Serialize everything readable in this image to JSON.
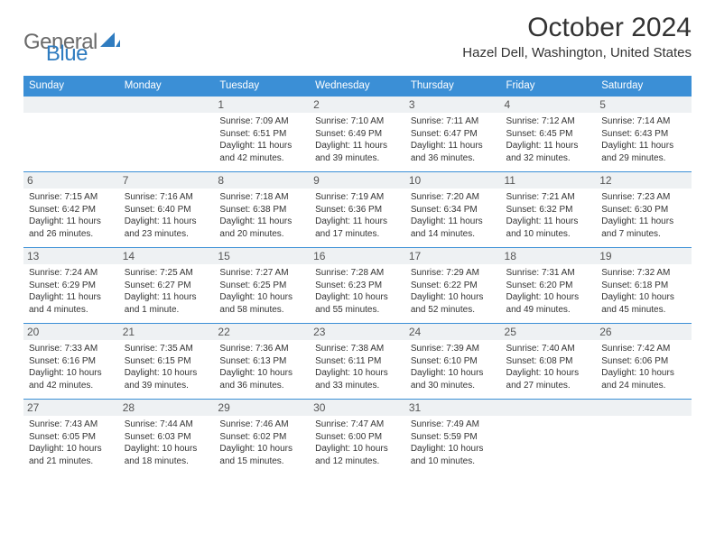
{
  "logo": {
    "word1": "General",
    "word2": "Blue",
    "shape_color": "#2f7cc0",
    "text_gray": "#6a6a6a"
  },
  "title": "October 2024",
  "location": "Hazel Dell, Washington, United States",
  "colors": {
    "header_bg": "#3b8fd6",
    "header_text": "#ffffff",
    "daynum_bg": "#eef1f3",
    "rule": "#3b8fd6",
    "body_text": "#333333"
  },
  "day_headers": [
    "Sunday",
    "Monday",
    "Tuesday",
    "Wednesday",
    "Thursday",
    "Friday",
    "Saturday"
  ],
  "weeks": [
    [
      {
        "n": "",
        "lines": []
      },
      {
        "n": "",
        "lines": []
      },
      {
        "n": "1",
        "lines": [
          "Sunrise: 7:09 AM",
          "Sunset: 6:51 PM",
          "Daylight: 11 hours and 42 minutes."
        ]
      },
      {
        "n": "2",
        "lines": [
          "Sunrise: 7:10 AM",
          "Sunset: 6:49 PM",
          "Daylight: 11 hours and 39 minutes."
        ]
      },
      {
        "n": "3",
        "lines": [
          "Sunrise: 7:11 AM",
          "Sunset: 6:47 PM",
          "Daylight: 11 hours and 36 minutes."
        ]
      },
      {
        "n": "4",
        "lines": [
          "Sunrise: 7:12 AM",
          "Sunset: 6:45 PM",
          "Daylight: 11 hours and 32 minutes."
        ]
      },
      {
        "n": "5",
        "lines": [
          "Sunrise: 7:14 AM",
          "Sunset: 6:43 PM",
          "Daylight: 11 hours and 29 minutes."
        ]
      }
    ],
    [
      {
        "n": "6",
        "lines": [
          "Sunrise: 7:15 AM",
          "Sunset: 6:42 PM",
          "Daylight: 11 hours and 26 minutes."
        ]
      },
      {
        "n": "7",
        "lines": [
          "Sunrise: 7:16 AM",
          "Sunset: 6:40 PM",
          "Daylight: 11 hours and 23 minutes."
        ]
      },
      {
        "n": "8",
        "lines": [
          "Sunrise: 7:18 AM",
          "Sunset: 6:38 PM",
          "Daylight: 11 hours and 20 minutes."
        ]
      },
      {
        "n": "9",
        "lines": [
          "Sunrise: 7:19 AM",
          "Sunset: 6:36 PM",
          "Daylight: 11 hours and 17 minutes."
        ]
      },
      {
        "n": "10",
        "lines": [
          "Sunrise: 7:20 AM",
          "Sunset: 6:34 PM",
          "Daylight: 11 hours and 14 minutes."
        ]
      },
      {
        "n": "11",
        "lines": [
          "Sunrise: 7:21 AM",
          "Sunset: 6:32 PM",
          "Daylight: 11 hours and 10 minutes."
        ]
      },
      {
        "n": "12",
        "lines": [
          "Sunrise: 7:23 AM",
          "Sunset: 6:30 PM",
          "Daylight: 11 hours and 7 minutes."
        ]
      }
    ],
    [
      {
        "n": "13",
        "lines": [
          "Sunrise: 7:24 AM",
          "Sunset: 6:29 PM",
          "Daylight: 11 hours and 4 minutes."
        ]
      },
      {
        "n": "14",
        "lines": [
          "Sunrise: 7:25 AM",
          "Sunset: 6:27 PM",
          "Daylight: 11 hours and 1 minute."
        ]
      },
      {
        "n": "15",
        "lines": [
          "Sunrise: 7:27 AM",
          "Sunset: 6:25 PM",
          "Daylight: 10 hours and 58 minutes."
        ]
      },
      {
        "n": "16",
        "lines": [
          "Sunrise: 7:28 AM",
          "Sunset: 6:23 PM",
          "Daylight: 10 hours and 55 minutes."
        ]
      },
      {
        "n": "17",
        "lines": [
          "Sunrise: 7:29 AM",
          "Sunset: 6:22 PM",
          "Daylight: 10 hours and 52 minutes."
        ]
      },
      {
        "n": "18",
        "lines": [
          "Sunrise: 7:31 AM",
          "Sunset: 6:20 PM",
          "Daylight: 10 hours and 49 minutes."
        ]
      },
      {
        "n": "19",
        "lines": [
          "Sunrise: 7:32 AM",
          "Sunset: 6:18 PM",
          "Daylight: 10 hours and 45 minutes."
        ]
      }
    ],
    [
      {
        "n": "20",
        "lines": [
          "Sunrise: 7:33 AM",
          "Sunset: 6:16 PM",
          "Daylight: 10 hours and 42 minutes."
        ]
      },
      {
        "n": "21",
        "lines": [
          "Sunrise: 7:35 AM",
          "Sunset: 6:15 PM",
          "Daylight: 10 hours and 39 minutes."
        ]
      },
      {
        "n": "22",
        "lines": [
          "Sunrise: 7:36 AM",
          "Sunset: 6:13 PM",
          "Daylight: 10 hours and 36 minutes."
        ]
      },
      {
        "n": "23",
        "lines": [
          "Sunrise: 7:38 AM",
          "Sunset: 6:11 PM",
          "Daylight: 10 hours and 33 minutes."
        ]
      },
      {
        "n": "24",
        "lines": [
          "Sunrise: 7:39 AM",
          "Sunset: 6:10 PM",
          "Daylight: 10 hours and 30 minutes."
        ]
      },
      {
        "n": "25",
        "lines": [
          "Sunrise: 7:40 AM",
          "Sunset: 6:08 PM",
          "Daylight: 10 hours and 27 minutes."
        ]
      },
      {
        "n": "26",
        "lines": [
          "Sunrise: 7:42 AM",
          "Sunset: 6:06 PM",
          "Daylight: 10 hours and 24 minutes."
        ]
      }
    ],
    [
      {
        "n": "27",
        "lines": [
          "Sunrise: 7:43 AM",
          "Sunset: 6:05 PM",
          "Daylight: 10 hours and 21 minutes."
        ]
      },
      {
        "n": "28",
        "lines": [
          "Sunrise: 7:44 AM",
          "Sunset: 6:03 PM",
          "Daylight: 10 hours and 18 minutes."
        ]
      },
      {
        "n": "29",
        "lines": [
          "Sunrise: 7:46 AM",
          "Sunset: 6:02 PM",
          "Daylight: 10 hours and 15 minutes."
        ]
      },
      {
        "n": "30",
        "lines": [
          "Sunrise: 7:47 AM",
          "Sunset: 6:00 PM",
          "Daylight: 10 hours and 12 minutes."
        ]
      },
      {
        "n": "31",
        "lines": [
          "Sunrise: 7:49 AM",
          "Sunset: 5:59 PM",
          "Daylight: 10 hours and 10 minutes."
        ]
      },
      {
        "n": "",
        "lines": []
      },
      {
        "n": "",
        "lines": []
      }
    ]
  ]
}
